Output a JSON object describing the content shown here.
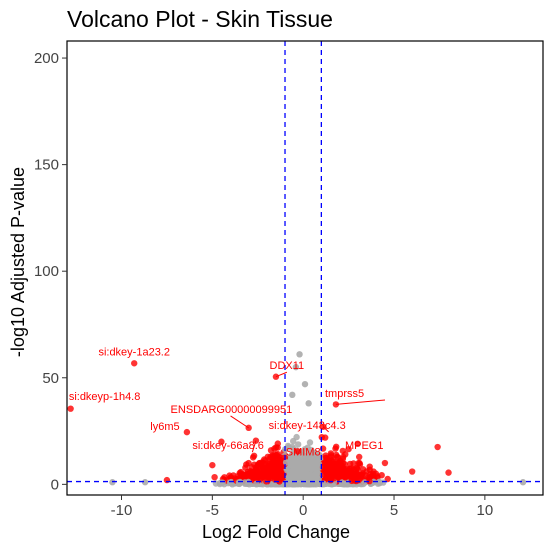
{
  "chart_data": {
    "type": "scatter",
    "title": "Volcano Plot - Skin Tissue",
    "xlabel": "Log2 Fold Change",
    "ylabel": "-log10 Adjusted P-value",
    "xlim": [
      -13,
      13.2
    ],
    "ylim": [
      -5,
      208
    ],
    "x_ticks": [
      -10,
      -5,
      0,
      5,
      10
    ],
    "y_ticks": [
      0,
      50,
      100,
      150,
      200
    ],
    "grid": false,
    "legend": "none",
    "thresholds": {
      "log2fc": [
        -1,
        1
      ],
      "neg_log10_padj": 1.3
    },
    "colors": {
      "significant": "#ff0000",
      "not_significant": "#aaaaaa",
      "threshold_line": "#0000ff",
      "label_text": "#ff0000"
    },
    "highlighted_points": [
      {
        "x": -12.8,
        "y": 35.5
      },
      {
        "x": -9.3,
        "y": 56.8
      },
      {
        "x": -6.4,
        "y": 24.5
      },
      {
        "x": -3.0,
        "y": 26.5
      },
      {
        "x": -2.6,
        "y": 20.5
      },
      {
        "x": -1.5,
        "y": 50.5
      },
      {
        "x": -0.3,
        "y": 15.5
      },
      {
        "x": 1.1,
        "y": 27.0
      },
      {
        "x": 1.8,
        "y": 37.5
      },
      {
        "x": 2.5,
        "y": 16.5
      },
      {
        "x": 3.0,
        "y": 19.0
      },
      {
        "x": 7.4,
        "y": 17.5
      },
      {
        "x": 8.0,
        "y": 5.5
      },
      {
        "x": -4.5,
        "y": 20.0
      },
      {
        "x": -7.5,
        "y": 2.0
      },
      {
        "x": -5.0,
        "y": 9.0
      },
      {
        "x": 4.5,
        "y": 10.0
      },
      {
        "x": 6.0,
        "y": 6.0
      }
    ],
    "grey_outliers": [
      {
        "x": -0.2,
        "y": 61.0
      },
      {
        "x": -0.4,
        "y": 55.0
      },
      {
        "x": 0.1,
        "y": 47.0
      },
      {
        "x": -0.6,
        "y": 42.0
      },
      {
        "x": 0.3,
        "y": 38.0
      },
      {
        "x": -10.5,
        "y": 1.0
      },
      {
        "x": -8.7,
        "y": 1.0
      },
      {
        "x": 12.1,
        "y": 1.0
      }
    ],
    "labels": [
      {
        "text": "si:dkey-1a23.2",
        "x": -9.3,
        "y": 56.8,
        "lx": -9.3,
        "ly": 60.5,
        "anchor": "middle"
      },
      {
        "text": "si:dkeyp-1h4.8",
        "x": -12.8,
        "y": 35.5,
        "lx": -12.9,
        "ly": 39.5,
        "anchor": "start"
      },
      {
        "text": "DDX11",
        "x": -1.5,
        "y": 50.5,
        "lx": -0.9,
        "ly": 54.0,
        "anchor": "middle"
      },
      {
        "text": "tmprss5",
        "x": 1.8,
        "y": 37.5,
        "lx": 1.2,
        "ly": 41.0,
        "anchor": "start"
      },
      {
        "text": "ENSDARG00000099951",
        "x": -3.0,
        "y": 26.5,
        "lx": -7.3,
        "ly": 33.5,
        "anchor": "start"
      },
      {
        "text": "ly6m5",
        "x": -6.4,
        "y": 24.5,
        "lx": -6.8,
        "ly": 25.5,
        "anchor": "end"
      },
      {
        "text": "si:dkey-148c4.3",
        "x": 1.1,
        "y": 27.0,
        "lx": -1.9,
        "ly": 26.0,
        "anchor": "start"
      },
      {
        "text": "si:dkey-66a8.6",
        "x": -2.6,
        "y": 20.5,
        "lx": -6.1,
        "ly": 16.5,
        "anchor": "start"
      },
      {
        "text": "SMIM8",
        "x": -0.3,
        "y": 15.5,
        "lx": 0.0,
        "ly": 13.5,
        "anchor": "middle"
      },
      {
        "text": "MPEG1",
        "x": 2.5,
        "y": 16.5,
        "lx": 2.3,
        "ly": 16.5,
        "anchor": "start"
      }
    ]
  }
}
